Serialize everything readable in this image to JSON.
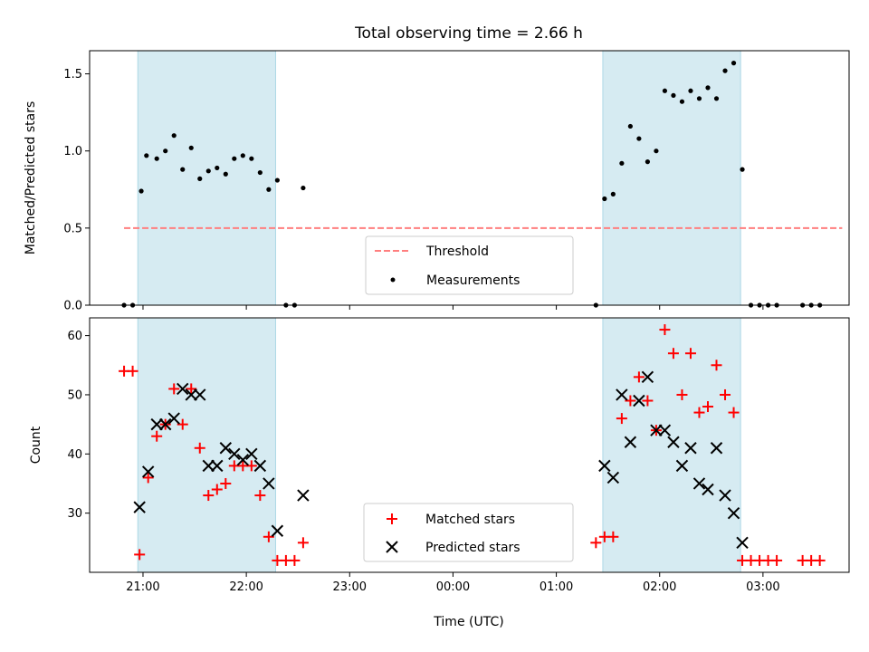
{
  "title": "Total observing time = 2.66 h",
  "colors": {
    "span": "#add8e6",
    "threshold": "#ff7f7f",
    "measurement": "#000000",
    "matched": "#ff0000",
    "predicted": "#000000"
  },
  "chart_data": [
    {
      "type": "scatter",
      "panel": "top",
      "ylabel": "Matched/Predicted stars",
      "xlabel": "",
      "ylim": [
        0,
        1.65
      ],
      "yticks": [
        0.0,
        0.5,
        1.0,
        1.5
      ],
      "ytick_labels": [
        "0.0",
        "0.5",
        "1.0",
        "1.5"
      ],
      "xlim": [
        "20:29",
        "03:50"
      ],
      "xticks": [
        "21:00",
        "22:00",
        "23:00",
        "00:00",
        "01:00",
        "02:00",
        "03:00"
      ],
      "shaded_spans": [
        [
          "20:57",
          "22:17"
        ],
        [
          "01:27",
          "02:47"
        ]
      ],
      "grid": false,
      "legend": {
        "position": "lower center",
        "entries": [
          "Threshold",
          "Measurements"
        ]
      },
      "threshold": {
        "name": "Threshold",
        "value": 0.5,
        "x_range": [
          "20:49",
          "03:46"
        ],
        "style": "dashed"
      },
      "series": [
        {
          "name": "Measurements",
          "marker": "dot",
          "points": [
            [
              "20:49",
              0
            ],
            [
              "20:54",
              0
            ],
            [
              "20:59",
              0.74
            ],
            [
              "21:02",
              0.97
            ],
            [
              "21:08",
              0.95
            ],
            [
              "21:13",
              1.0
            ],
            [
              "21:18",
              1.1
            ],
            [
              "21:23",
              0.88
            ],
            [
              "21:28",
              1.02
            ],
            [
              "21:33",
              0.82
            ],
            [
              "21:38",
              0.87
            ],
            [
              "21:43",
              0.89
            ],
            [
              "21:48",
              0.85
            ],
            [
              "21:53",
              0.95
            ],
            [
              "21:58",
              0.97
            ],
            [
              "22:03",
              0.95
            ],
            [
              "22:08",
              0.86
            ],
            [
              "22:13",
              0.75
            ],
            [
              "22:18",
              0.81
            ],
            [
              "22:23",
              0
            ],
            [
              "22:28",
              0
            ],
            [
              "22:33",
              0.76
            ],
            [
              "01:23",
              0
            ],
            [
              "01:28",
              0.69
            ],
            [
              "01:33",
              0.72
            ],
            [
              "01:38",
              0.92
            ],
            [
              "01:43",
              1.16
            ],
            [
              "01:48",
              1.08
            ],
            [
              "01:53",
              0.93
            ],
            [
              "01:58",
              1.0
            ],
            [
              "02:03",
              1.39
            ],
            [
              "02:08",
              1.36
            ],
            [
              "02:13",
              1.32
            ],
            [
              "02:18",
              1.39
            ],
            [
              "02:23",
              1.34
            ],
            [
              "02:28",
              1.41
            ],
            [
              "02:33",
              1.34
            ],
            [
              "02:38",
              1.52
            ],
            [
              "02:43",
              1.57
            ],
            [
              "02:48",
              0.88
            ],
            [
              "02:53",
              0
            ],
            [
              "02:58",
              0
            ],
            [
              "03:03",
              0
            ],
            [
              "03:08",
              0
            ],
            [
              "03:23",
              0
            ],
            [
              "03:28",
              0
            ],
            [
              "03:33",
              0
            ]
          ]
        }
      ]
    },
    {
      "type": "scatter",
      "panel": "bottom",
      "ylabel": "Count",
      "xlabel": "Time (UTC)",
      "ylim": [
        20,
        63
      ],
      "yticks": [
        30,
        40,
        50,
        60
      ],
      "ytick_labels": [
        "30",
        "40",
        "50",
        "60"
      ],
      "xlim": [
        "20:29",
        "03:50"
      ],
      "xticks": [
        "21:00",
        "22:00",
        "23:00",
        "00:00",
        "01:00",
        "02:00",
        "03:00"
      ],
      "xtick_labels": [
        "21:00",
        "22:00",
        "23:00",
        "00:00",
        "01:00",
        "02:00",
        "03:00"
      ],
      "shaded_spans": [
        [
          "20:57",
          "22:17"
        ],
        [
          "01:27",
          "02:47"
        ]
      ],
      "grid": false,
      "legend": {
        "position": "lower center",
        "entries": [
          "Matched stars",
          "Predicted stars"
        ]
      },
      "series": [
        {
          "name": "Matched stars",
          "marker": "plus",
          "points": [
            [
              "20:49",
              54
            ],
            [
              "20:54",
              54
            ],
            [
              "20:58",
              23
            ],
            [
              "21:03",
              36
            ],
            [
              "21:08",
              43
            ],
            [
              "21:13",
              45
            ],
            [
              "21:18",
              51
            ],
            [
              "21:23",
              45
            ],
            [
              "21:28",
              51
            ],
            [
              "21:33",
              41
            ],
            [
              "21:38",
              33
            ],
            [
              "21:43",
              34
            ],
            [
              "21:48",
              35
            ],
            [
              "21:53",
              38
            ],
            [
              "21:58",
              38
            ],
            [
              "22:03",
              38
            ],
            [
              "22:08",
              33
            ],
            [
              "22:13",
              26
            ],
            [
              "22:18",
              22
            ],
            [
              "22:23",
              22
            ],
            [
              "22:28",
              22
            ],
            [
              "22:33",
              25
            ],
            [
              "01:23",
              25
            ],
            [
              "01:28",
              26
            ],
            [
              "01:33",
              26
            ],
            [
              "01:38",
              46
            ],
            [
              "01:43",
              49
            ],
            [
              "01:48",
              53
            ],
            [
              "01:53",
              49
            ],
            [
              "01:58",
              44
            ],
            [
              "02:03",
              61
            ],
            [
              "02:08",
              57
            ],
            [
              "02:13",
              50
            ],
            [
              "02:18",
              57
            ],
            [
              "02:23",
              47
            ],
            [
              "02:28",
              48
            ],
            [
              "02:33",
              55
            ],
            [
              "02:38",
              50
            ],
            [
              "02:43",
              47
            ],
            [
              "02:48",
              22
            ],
            [
              "02:53",
              22
            ],
            [
              "02:58",
              22
            ],
            [
              "03:03",
              22
            ],
            [
              "03:08",
              22
            ],
            [
              "03:23",
              22
            ],
            [
              "03:28",
              22
            ],
            [
              "03:33",
              22
            ]
          ]
        },
        {
          "name": "Predicted stars",
          "marker": "x",
          "points": [
            [
              "20:58",
              31
            ],
            [
              "21:03",
              37
            ],
            [
              "21:08",
              45
            ],
            [
              "21:13",
              45
            ],
            [
              "21:18",
              46
            ],
            [
              "21:23",
              51
            ],
            [
              "21:28",
              50
            ],
            [
              "21:33",
              50
            ],
            [
              "21:38",
              38
            ],
            [
              "21:43",
              38
            ],
            [
              "21:48",
              41
            ],
            [
              "21:53",
              40
            ],
            [
              "21:58",
              39
            ],
            [
              "22:03",
              40
            ],
            [
              "22:08",
              38
            ],
            [
              "22:13",
              35
            ],
            [
              "22:18",
              27
            ],
            [
              "22:33",
              33
            ],
            [
              "01:28",
              38
            ],
            [
              "01:33",
              36
            ],
            [
              "01:38",
              50
            ],
            [
              "01:43",
              42
            ],
            [
              "01:48",
              49
            ],
            [
              "01:53",
              53
            ],
            [
              "01:58",
              44
            ],
            [
              "02:03",
              44
            ],
            [
              "02:08",
              42
            ],
            [
              "02:13",
              38
            ],
            [
              "02:18",
              41
            ],
            [
              "02:23",
              35
            ],
            [
              "02:28",
              34
            ],
            [
              "02:33",
              41
            ],
            [
              "02:38",
              33
            ],
            [
              "02:43",
              30
            ],
            [
              "02:48",
              25
            ]
          ]
        }
      ]
    }
  ]
}
